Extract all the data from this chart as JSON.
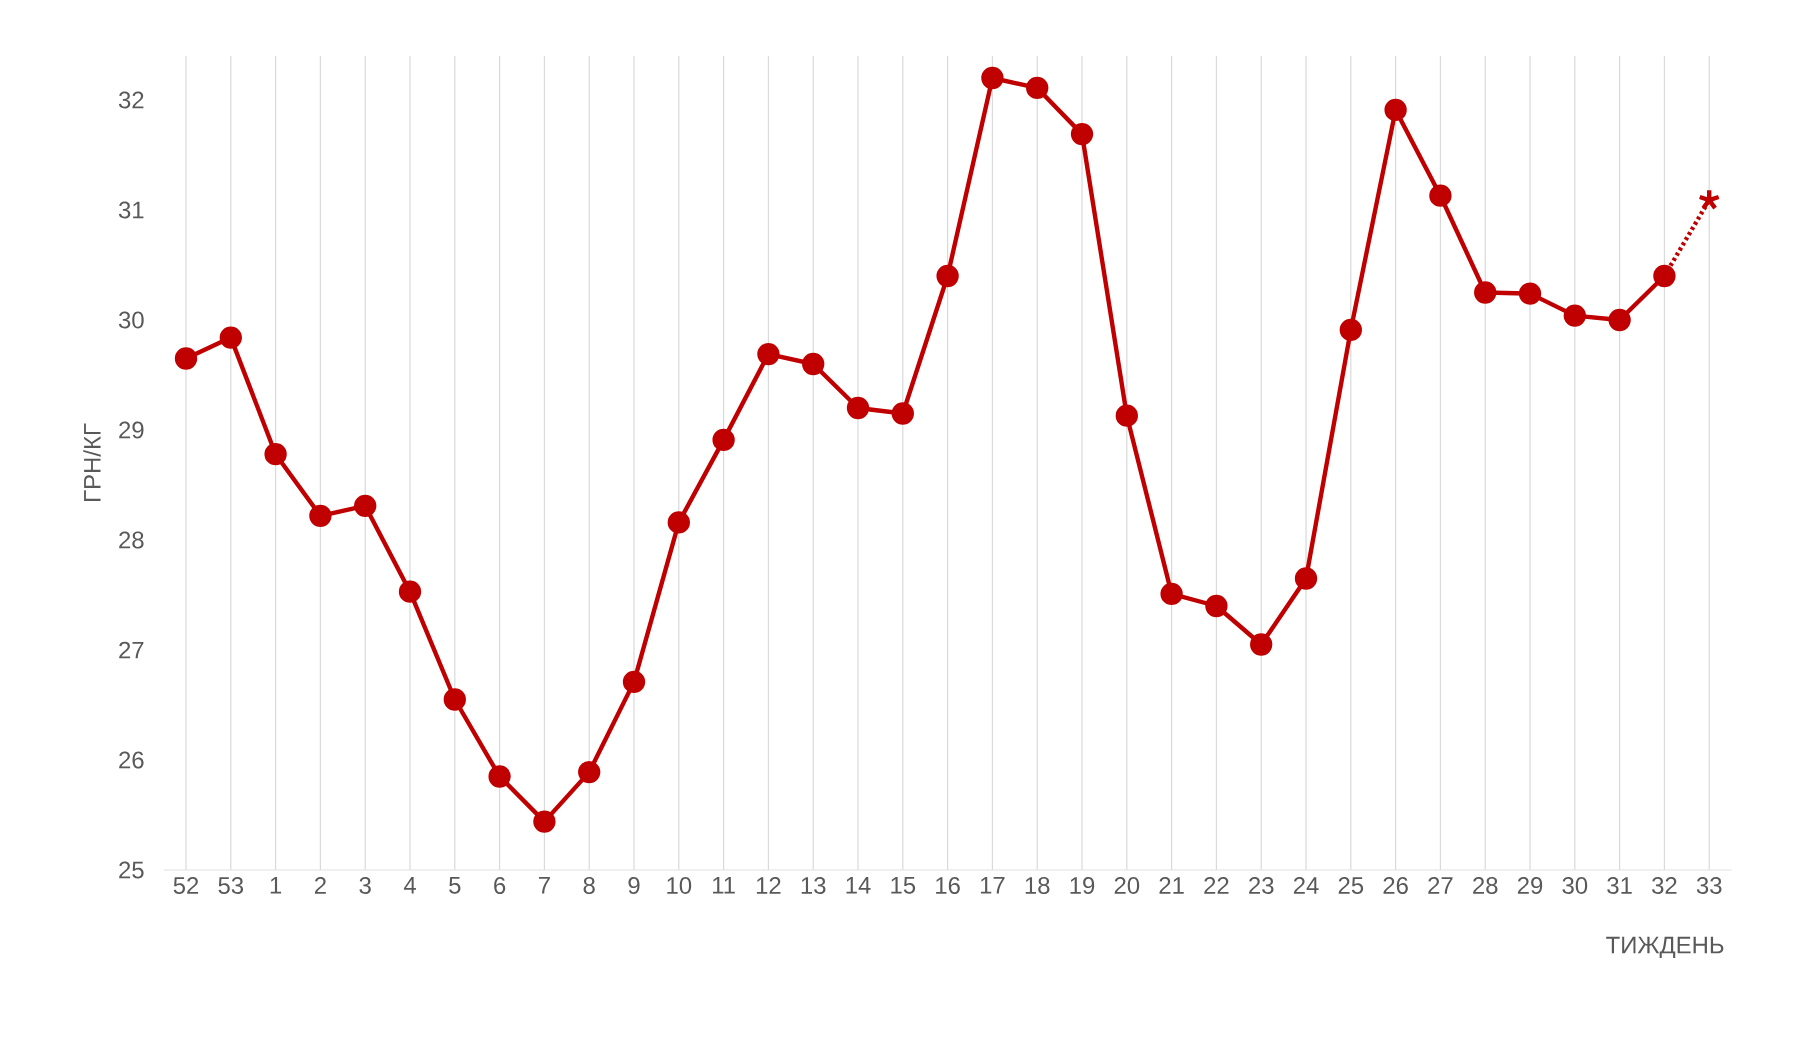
{
  "chart_data": {
    "type": "line",
    "xlabel": "ТИЖДЕНЬ",
    "ylabel": "ГРН/КГ",
    "categories": [
      "52",
      "53",
      "1",
      "2",
      "3",
      "4",
      "5",
      "6",
      "7",
      "8",
      "9",
      "10",
      "11",
      "12",
      "13",
      "14",
      "15",
      "16",
      "17",
      "18",
      "19",
      "20",
      "21",
      "22",
      "23",
      "24",
      "25",
      "26",
      "27",
      "28",
      "29",
      "30",
      "31",
      "32",
      "33"
    ],
    "series": [
      {
        "color": "#c00000",
        "marker": "circle",
        "line_style": "solid",
        "values": [
          29.65,
          29.84,
          28.78,
          28.22,
          28.31,
          27.53,
          26.55,
          25.85,
          25.44,
          25.89,
          26.71,
          28.16,
          28.91,
          29.69,
          29.6,
          29.2,
          29.15,
          30.4,
          32.2,
          32.11,
          31.69,
          29.13,
          27.51,
          27.4,
          27.05,
          27.65,
          29.91,
          31.91,
          31.13,
          30.25,
          30.24,
          30.04,
          30.0,
          30.4,
          null
        ]
      },
      {
        "color": "#c00000",
        "line_style": "dotted",
        "values": [
          null,
          null,
          null,
          null,
          null,
          null,
          null,
          null,
          null,
          null,
          null,
          null,
          null,
          null,
          null,
          null,
          null,
          null,
          null,
          null,
          null,
          null,
          null,
          null,
          null,
          null,
          null,
          null,
          null,
          null,
          null,
          null,
          null,
          30.4,
          31.09
        ]
      },
      {
        "type": "scatter",
        "color": "#c00000",
        "marker": "cross",
        "values": [
          null,
          null,
          null,
          null,
          null,
          null,
          null,
          null,
          null,
          null,
          null,
          null,
          null,
          null,
          null,
          null,
          null,
          null,
          null,
          null,
          null,
          null,
          null,
          null,
          null,
          null,
          null,
          null,
          null,
          null,
          null,
          null,
          null,
          null,
          31.09
        ]
      }
    ],
    "ylim": [
      25,
      32.4
    ],
    "yticks": [
      25,
      26,
      27,
      28,
      29,
      30,
      31,
      32
    ],
    "grid": "x"
  }
}
